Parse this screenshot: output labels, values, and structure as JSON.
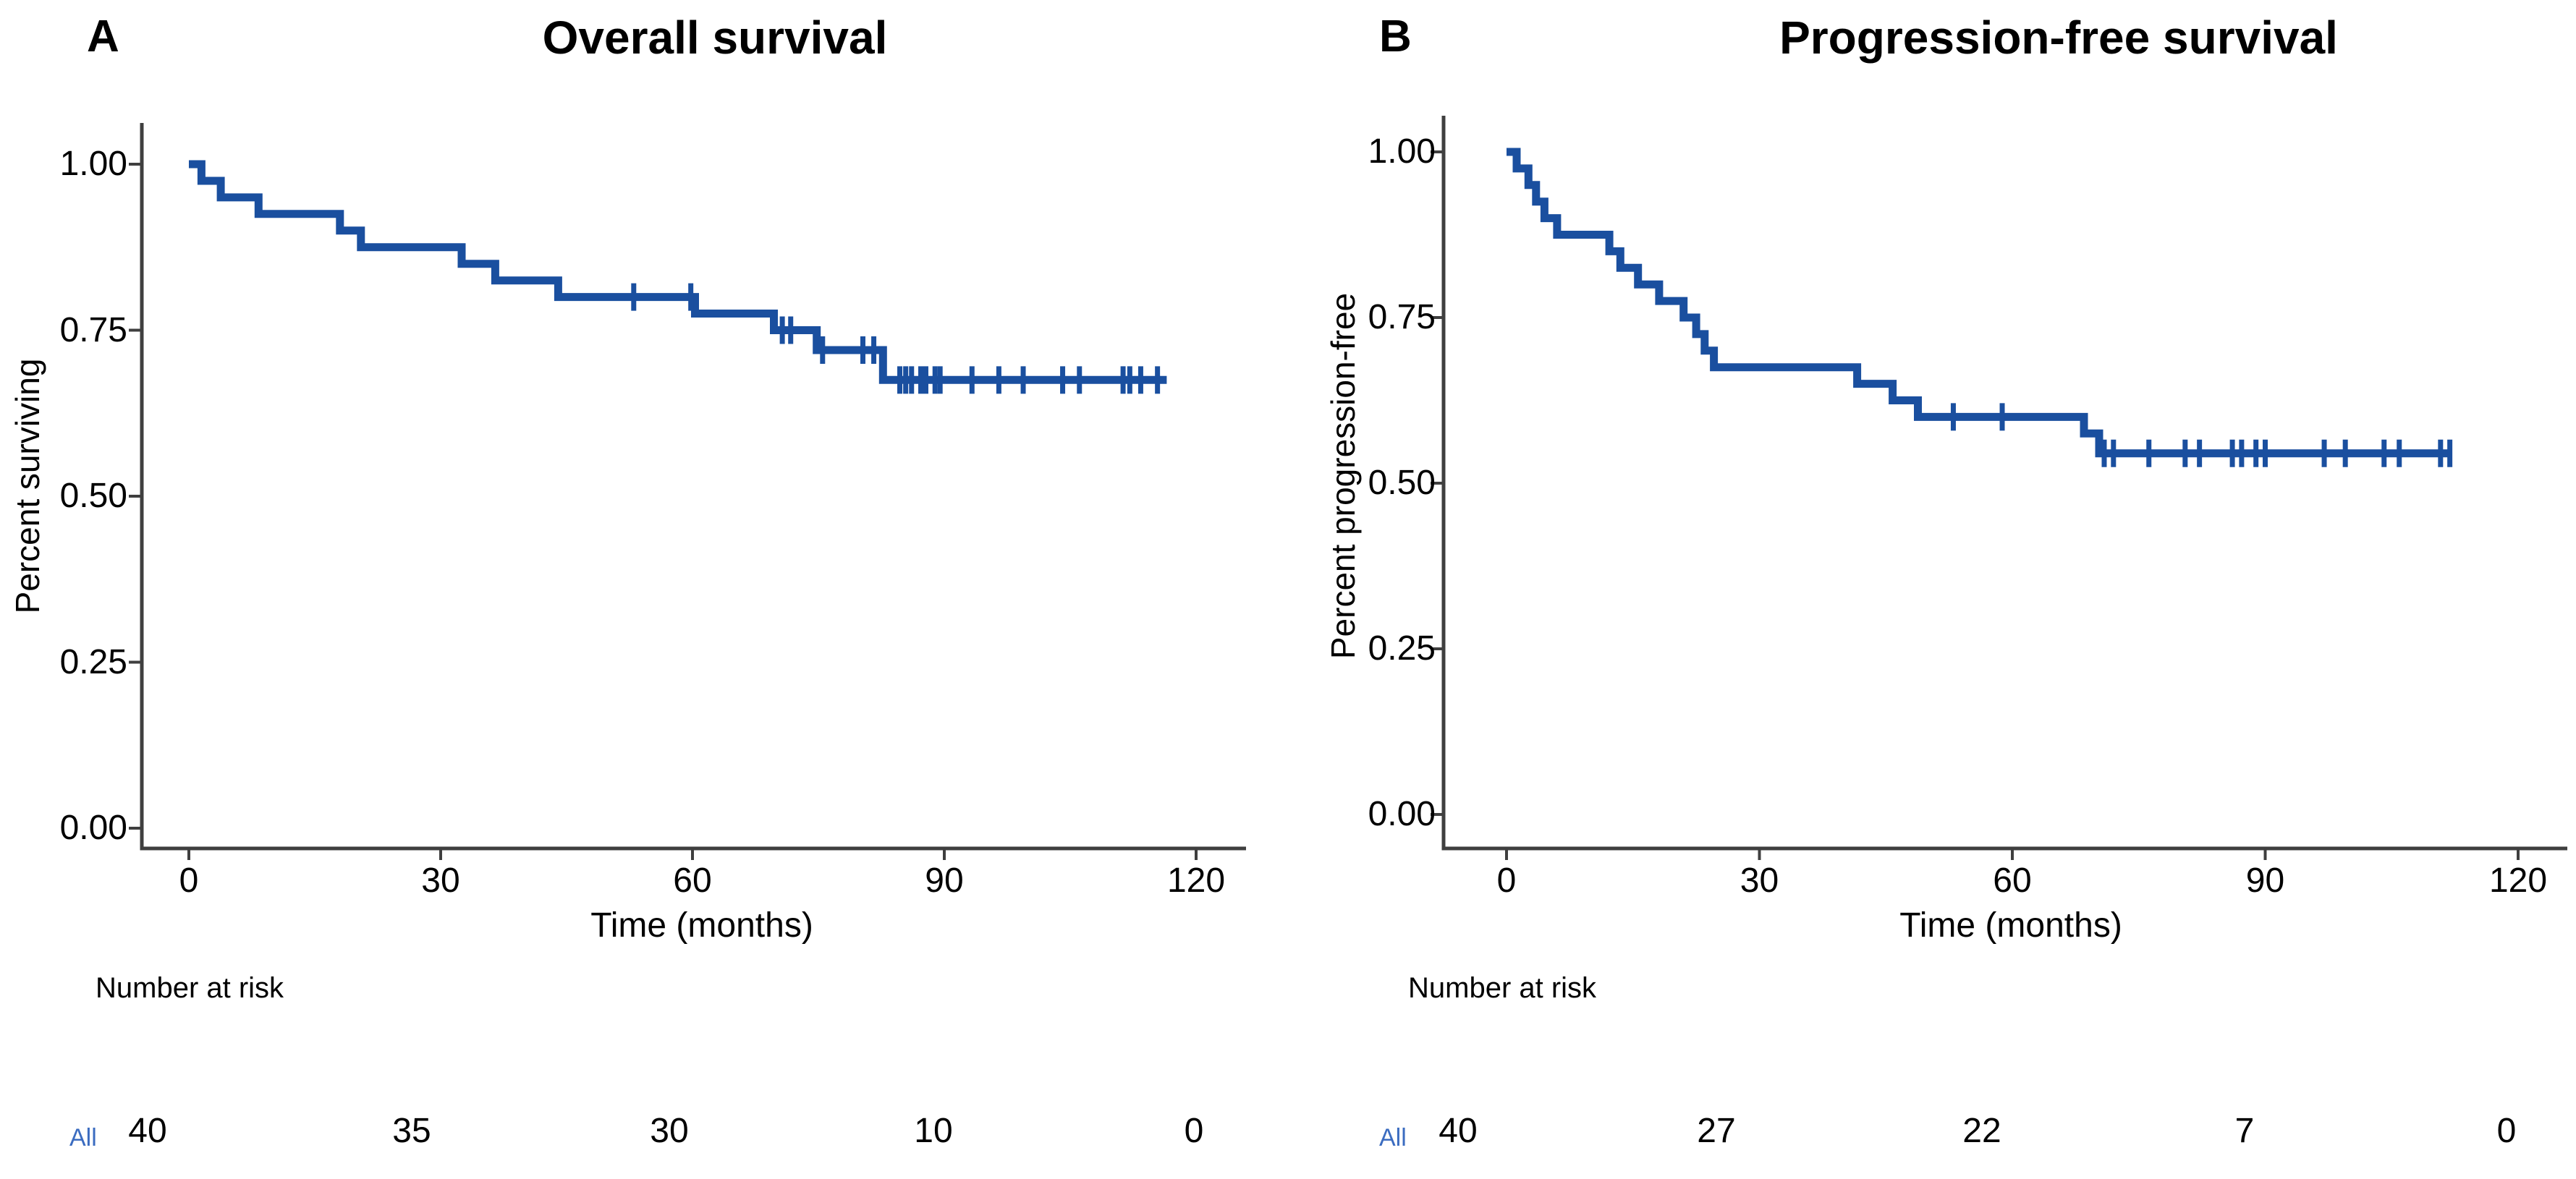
{
  "colors": {
    "curve": "#1A4F9F",
    "axis": "#3F3F3F",
    "text": "#000000",
    "risk_group_label": "#3B6CC0",
    "background": "#FFFFFF"
  },
  "chart_data": [
    {
      "type": "line",
      "subtype": "kaplan_meier_step",
      "panel_label": "A",
      "title": "Overall survival",
      "xlabel": "Time (months)",
      "ylabel": "Percent surviving",
      "xlim": [
        0,
        126
      ],
      "ylim": [
        0,
        1.02
      ],
      "x_ticks": [
        0,
        30,
        60,
        90,
        120
      ],
      "y_ticks": [
        "1.00",
        "0.75",
        "0.50",
        "0.25",
        "0.00"
      ],
      "y_tick_values": [
        1.0,
        0.75,
        0.5,
        0.25,
        0.0
      ],
      "grid": false,
      "legend_position": "none",
      "series": [
        {
          "name": "All",
          "steps": [
            [
              0,
              1.0
            ],
            [
              1.5,
              0.975
            ],
            [
              3.8,
              0.95
            ],
            [
              8.3,
              0.925
            ],
            [
              18,
              0.9
            ],
            [
              20.5,
              0.875
            ],
            [
              32.5,
              0.85
            ],
            [
              36.5,
              0.825
            ],
            [
              44,
              0.8
            ],
            [
              60.3,
              0.775
            ],
            [
              69.7,
              0.75
            ],
            [
              74.8,
              0.72
            ],
            [
              82.7,
              0.675
            ]
          ],
          "end_time": 116.5,
          "censors": [
            [
              53,
              0.8
            ],
            [
              59.8,
              0.8
            ],
            [
              70.7,
              0.75
            ],
            [
              71.7,
              0.75
            ],
            [
              75.5,
              0.72
            ],
            [
              80.3,
              0.72
            ],
            [
              81.6,
              0.72
            ],
            [
              84.7,
              0.675
            ],
            [
              85.4,
              0.675
            ],
            [
              86.1,
              0.675
            ],
            [
              87.2,
              0.675
            ],
            [
              87.8,
              0.675
            ],
            [
              88.9,
              0.675
            ],
            [
              89.5,
              0.675
            ],
            [
              93.3,
              0.675
            ],
            [
              96.5,
              0.675
            ],
            [
              99.4,
              0.675
            ],
            [
              104.1,
              0.675
            ],
            [
              106.1,
              0.675
            ],
            [
              111.3,
              0.675
            ],
            [
              112.1,
              0.675
            ],
            [
              113.4,
              0.675
            ],
            [
              115.4,
              0.675
            ]
          ]
        }
      ],
      "number_at_risk": {
        "heading": "Number at risk",
        "group_label": "All",
        "times": [
          0,
          30,
          60,
          90,
          120
        ],
        "counts": [
          "40",
          "35",
          "30",
          "10",
          "0"
        ]
      }
    },
    {
      "type": "line",
      "subtype": "kaplan_meier_step",
      "panel_label": "B",
      "title": "Progression-free survival",
      "xlabel": "Time (months)",
      "ylabel": "Percent progression-free",
      "xlim": [
        0,
        126
      ],
      "ylim": [
        0,
        1.02
      ],
      "x_ticks": [
        0,
        30,
        60,
        90,
        120
      ],
      "y_ticks": [
        "1.00",
        "0.75",
        "0.50",
        "0.25",
        "0.00"
      ],
      "y_tick_values": [
        1.0,
        0.75,
        0.5,
        0.25,
        0.0
      ],
      "grid": false,
      "legend_position": "none",
      "series": [
        {
          "name": "All",
          "steps": [
            [
              0,
              1.0
            ],
            [
              1.2,
              0.975
            ],
            [
              2.6,
              0.95
            ],
            [
              3.5,
              0.925
            ],
            [
              4.5,
              0.9
            ],
            [
              6,
              0.875
            ],
            [
              12.2,
              0.85
            ],
            [
              13.5,
              0.825
            ],
            [
              15.6,
              0.8
            ],
            [
              18.1,
              0.775
            ],
            [
              21,
              0.75
            ],
            [
              22.5,
              0.725
            ],
            [
              23.5,
              0.7
            ],
            [
              24.6,
              0.675
            ],
            [
              41.6,
              0.65
            ],
            [
              45.8,
              0.625
            ],
            [
              48.8,
              0.6
            ],
            [
              68.5,
              0.575
            ],
            [
              70.3,
              0.545
            ]
          ],
          "end_time": 112,
          "censors": [
            [
              53,
              0.6
            ],
            [
              58.8,
              0.6
            ],
            [
              70.9,
              0.545
            ],
            [
              72,
              0.545
            ],
            [
              76.2,
              0.545
            ],
            [
              80.5,
              0.545
            ],
            [
              82.2,
              0.545
            ],
            [
              86.1,
              0.545
            ],
            [
              87.2,
              0.545
            ],
            [
              88.9,
              0.545
            ],
            [
              90,
              0.545
            ],
            [
              97,
              0.545
            ],
            [
              99.5,
              0.545
            ],
            [
              104.1,
              0.545
            ],
            [
              105.9,
              0.545
            ],
            [
              110.8,
              0.545
            ],
            [
              111.9,
              0.545
            ]
          ]
        }
      ],
      "number_at_risk": {
        "heading": "Number at risk",
        "group_label": "All",
        "times": [
          0,
          30,
          60,
          90,
          120
        ],
        "counts": [
          "40",
          "27",
          "22",
          "7",
          "0"
        ]
      }
    }
  ]
}
